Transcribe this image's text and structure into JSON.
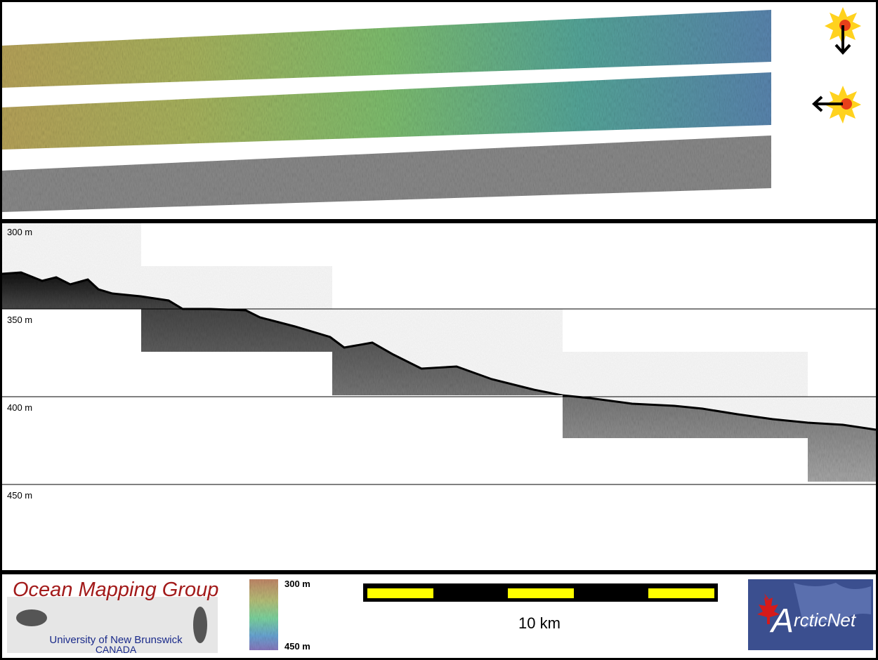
{
  "depth_labels": [
    "300 m",
    "350 m",
    "400 m",
    "450 m"
  ],
  "logo": {
    "title": "Ocean Mapping Group",
    "university": "University of New Brunswick",
    "country": "CANADA"
  },
  "colorbar": {
    "top": "300 m",
    "bottom": "450 m"
  },
  "scale_bar": {
    "label": "10 km"
  },
  "partner_logo": {
    "initial": "A",
    "rest": "rcticNet"
  }
}
